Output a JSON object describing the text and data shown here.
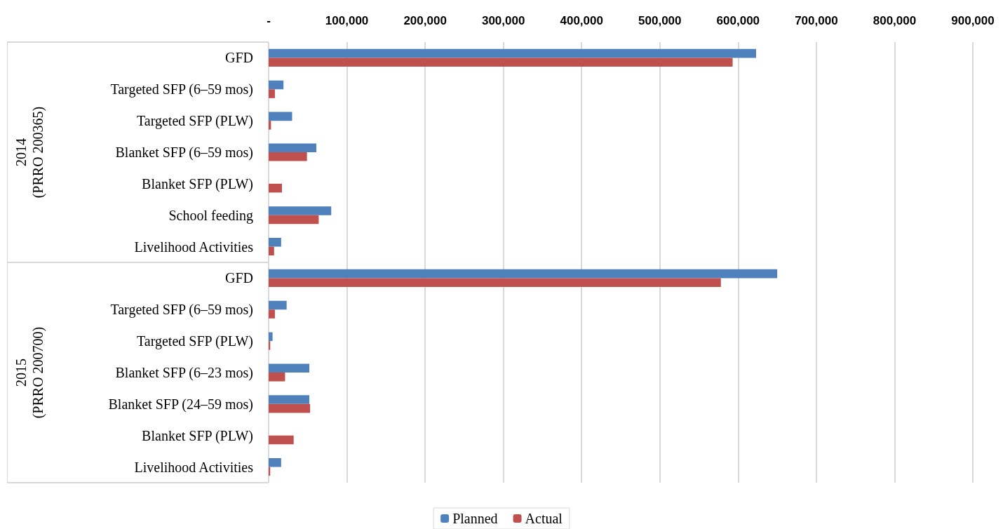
{
  "chart_data": {
    "type": "bar",
    "orientation": "horizontal",
    "categories": [
      "GFD",
      "Targeted SFP (6–59 mos)",
      "Targeted SFP (PLW)",
      "Blanket SFP (6–59 mos)",
      "Blanket SFP (PLW)",
      "School feeding",
      "Livelihood Activities",
      "GFD",
      "Targeted SFP (6–59 mos)",
      "Targeted SFP (PLW)",
      "Blanket SFP (6–23 mos)",
      "Blanket SFP (24–59 mos)",
      "Blanket SFP (PLW)",
      "Livelihood Activities"
    ],
    "series": [
      {
        "name": "Planned",
        "color": "#4f81bd",
        "values": [
          623000,
          19000,
          30000,
          61000,
          null,
          80000,
          16000,
          650000,
          23000,
          5000,
          52000,
          52000,
          null,
          16000
        ]
      },
      {
        "name": "Actual",
        "color": "#c0504d",
        "values": [
          593000,
          8000,
          3000,
          49000,
          17000,
          64000,
          7000,
          578000,
          8000,
          2000,
          21000,
          53000,
          32000,
          2000
        ]
      }
    ],
    "xlim": [
      0,
      900000
    ],
    "xticks": [
      {
        "value": 0,
        "label": "-"
      },
      {
        "value": 100000,
        "label": "100,000"
      },
      {
        "value": 200000,
        "label": "200,000"
      },
      {
        "value": 300000,
        "label": "300,000"
      },
      {
        "value": 400000,
        "label": "400,000"
      },
      {
        "value": 500000,
        "label": "500,000"
      },
      {
        "value": 600000,
        "label": "600,000"
      },
      {
        "value": 700000,
        "label": "700,000"
      },
      {
        "value": 800000,
        "label": "800,000"
      },
      {
        "value": 900000,
        "label": "900,000"
      }
    ],
    "annotations": [
      "2014\n(PRRO 200365)",
      "2015\n(PRRO 200700)"
    ],
    "grid": "x",
    "legend": "bottom"
  }
}
